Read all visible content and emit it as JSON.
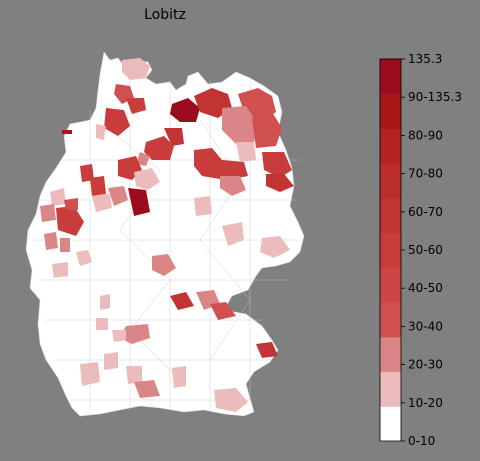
{
  "title": "Lobitz",
  "legend": {
    "labels": [
      "135.3",
      "90-135.3",
      "80-90",
      "70-80",
      "60-70",
      "50-60",
      "40-50",
      "30-40",
      "20-30",
      "10-20",
      "0-10"
    ],
    "bins": [
      {
        "color": "#ffffff"
      },
      {
        "color": "#ecbcbc"
      },
      {
        "color": "#db8686"
      },
      {
        "color": "#d05050"
      },
      {
        "color": "#cc4646"
      },
      {
        "color": "#c83c3c"
      },
      {
        "color": "#c23434"
      },
      {
        "color": "#bb2c2c"
      },
      {
        "color": "#b42424"
      },
      {
        "color": "#a81818"
      },
      {
        "color": "#9b0c1e"
      }
    ]
  },
  "colors": {
    "background": "#808080",
    "land": "#ffffff",
    "border": "#c8c8c8"
  }
}
